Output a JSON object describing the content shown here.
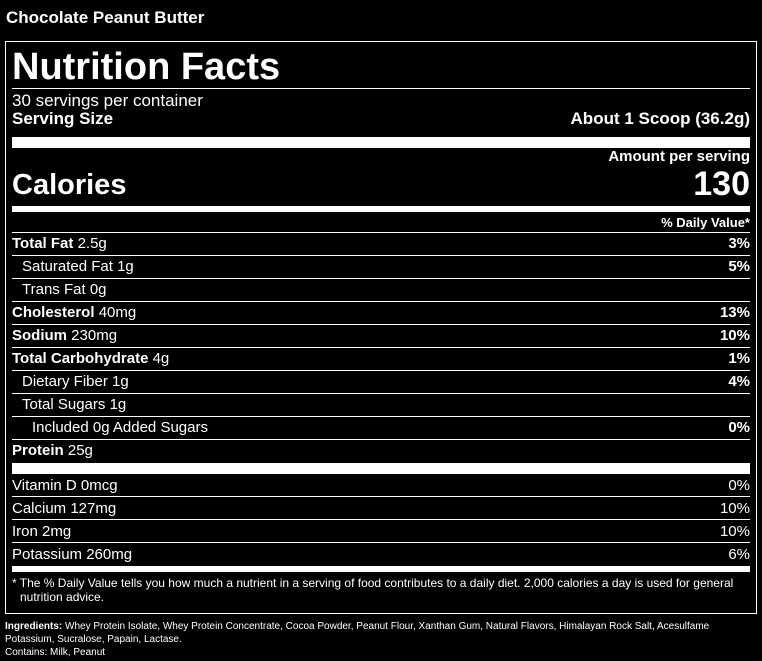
{
  "product_name": "Chocolate Peanut Butter",
  "label": {
    "title": "Nutrition Facts",
    "servings": "30 servings per container",
    "serving_size_label": "Serving Size",
    "serving_size_value": "About 1 Scoop (36.2g)",
    "amount_per_serving": "Amount per serving",
    "calories_label": "Calories",
    "calories_value": "130",
    "dv_header": "% Daily Value*",
    "nutrients": [
      {
        "name": "Total Fat",
        "amount": "2.5g",
        "dv": "3%"
      },
      {
        "name": "Saturated Fat",
        "amount": "1g",
        "dv": "5%"
      },
      {
        "name": "Trans Fat",
        "amount": "0g",
        "dv": ""
      },
      {
        "name": "Cholesterol",
        "amount": "40mg",
        "dv": "13%"
      },
      {
        "name": "Sodium",
        "amount": "230mg",
        "dv": "10%"
      },
      {
        "name": "Total Carbohydrate",
        "amount": "4g",
        "dv": "1%"
      },
      {
        "name": "Dietary Fiber",
        "amount": "1g",
        "dv": "4%"
      },
      {
        "name": "Total Sugars",
        "amount": "1g",
        "dv": ""
      },
      {
        "name": "Included 0g Added Sugars",
        "amount": "",
        "dv": "0%"
      },
      {
        "name": "Protein",
        "amount": "25g",
        "dv": ""
      }
    ],
    "vitamins": [
      {
        "name": "Vitamin D 0mcg",
        "dv": "0%"
      },
      {
        "name": "Calcium 127mg",
        "dv": "10%"
      },
      {
        "name": "Iron 2mg",
        "dv": "10%"
      },
      {
        "name": "Potassium 260mg",
        "dv": "6%"
      }
    ],
    "footnote": "* The % Daily Value tells you how much a nutrient in a serving of food contributes to a daily diet. 2,000 calories a day is used for general nutrition advice."
  },
  "ingredients_label": "Ingredients:",
  "ingredients": "Whey Protein Isolate, Whey Protein Concentrate, Cocoa Powder, Peanut Flour, Xanthan Gum, Natural Flavors, Himalayan Rock Salt, Acesulfame Potassium, Sucralose, Papain, Lactase.",
  "contains": "Contains: Milk, Peanut"
}
